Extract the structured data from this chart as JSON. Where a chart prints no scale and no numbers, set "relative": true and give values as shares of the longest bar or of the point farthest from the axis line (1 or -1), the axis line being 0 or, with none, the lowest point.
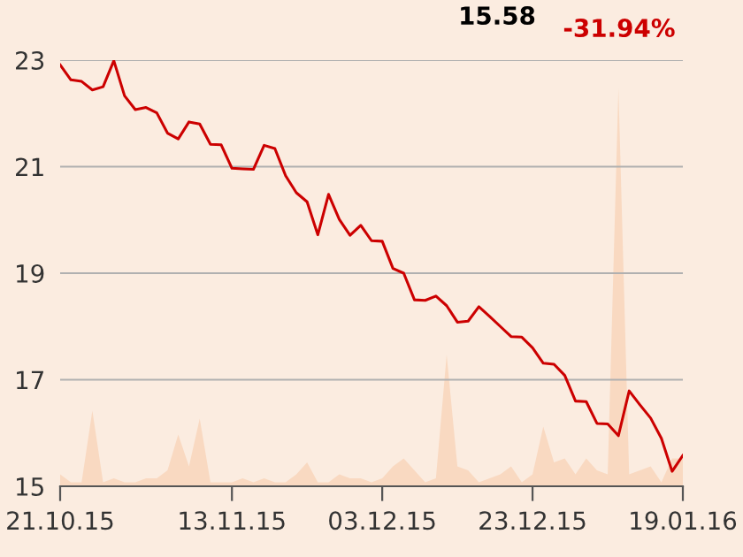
{
  "chart_data": [
    {
      "type": "line",
      "categories": [
        "21.10.15",
        null,
        null,
        null,
        null,
        null,
        null,
        null,
        null,
        null,
        null,
        null,
        null,
        null,
        null,
        null,
        "13.11.15",
        null,
        null,
        null,
        null,
        null,
        null,
        null,
        null,
        null,
        null,
        null,
        null,
        null,
        "03.12.15",
        null,
        null,
        null,
        null,
        null,
        null,
        null,
        null,
        null,
        null,
        null,
        null,
        null,
        "23.12.15",
        null,
        null,
        null,
        null,
        null,
        null,
        null,
        null,
        null,
        null,
        null,
        null,
        null,
        "19.01.16"
      ],
      "series": [
        {
          "color": "#cc0000",
          "values": [
            22.91,
            22.63,
            22.6,
            22.44,
            22.5,
            22.99,
            22.33,
            22.07,
            22.11,
            22.01,
            21.63,
            21.52,
            21.84,
            21.8,
            21.42,
            21.41,
            20.97,
            20.96,
            20.95,
            21.4,
            21.34,
            20.83,
            20.51,
            20.34,
            19.72,
            20.48,
            20.01,
            19.71,
            19.9,
            19.61,
            19.6,
            19.09,
            19.0,
            18.5,
            18.49,
            18.57,
            18.39,
            18.08,
            18.1,
            18.37,
            18.19,
            18.0,
            17.81,
            17.8,
            17.6,
            17.31,
            17.29,
            17.08,
            16.6,
            16.59,
            16.18,
            16.17,
            15.95,
            16.79,
            16.53,
            16.28,
            15.9,
            15.28,
            15.58
          ]
        }
      ],
      "ylim": [
        15,
        23
      ],
      "yticks": [
        15,
        17,
        19,
        21,
        23
      ],
      "grid": "y",
      "marker": "none",
      "line_style": "solid",
      "annotations": [
        "15.58",
        "-31.94%"
      ]
    },
    {
      "type": "area",
      "relative": true,
      "tick_labels": false,
      "categories": [
        "21.10.15",
        null,
        null,
        null,
        null,
        null,
        null,
        null,
        null,
        null,
        null,
        null,
        null,
        null,
        null,
        null,
        "13.11.15",
        null,
        null,
        null,
        null,
        null,
        null,
        null,
        null,
        null,
        null,
        null,
        null,
        null,
        "03.12.15",
        null,
        null,
        null,
        null,
        null,
        null,
        null,
        null,
        null,
        null,
        null,
        null,
        null,
        "23.12.15",
        null,
        null,
        null,
        null,
        null,
        null,
        null,
        null,
        null,
        null,
        null,
        null,
        null,
        "19.01.16"
      ],
      "series": [
        {
          "color": "#f9d9c1",
          "values": [
            0.03,
            0.01,
            0.01,
            0.19,
            0.01,
            0.02,
            0.01,
            0.01,
            0.02,
            0.02,
            0.04,
            0.13,
            0.05,
            0.17,
            0.01,
            0.01,
            0.01,
            0.02,
            0.01,
            0.02,
            0.01,
            0.01,
            0.03,
            0.06,
            0.01,
            0.01,
            0.03,
            0.02,
            0.02,
            0.01,
            0.02,
            0.05,
            0.07,
            0.04,
            0.01,
            0.02,
            0.33,
            0.05,
            0.04,
            0.01,
            0.02,
            0.03,
            0.05,
            0.01,
            0.03,
            0.15,
            0.06,
            0.07,
            0.03,
            0.07,
            0.04,
            0.03,
            1.0,
            0.03,
            0.04,
            0.05,
            0.01,
            0.07,
            0.07
          ]
        }
      ]
    }
  ]
}
